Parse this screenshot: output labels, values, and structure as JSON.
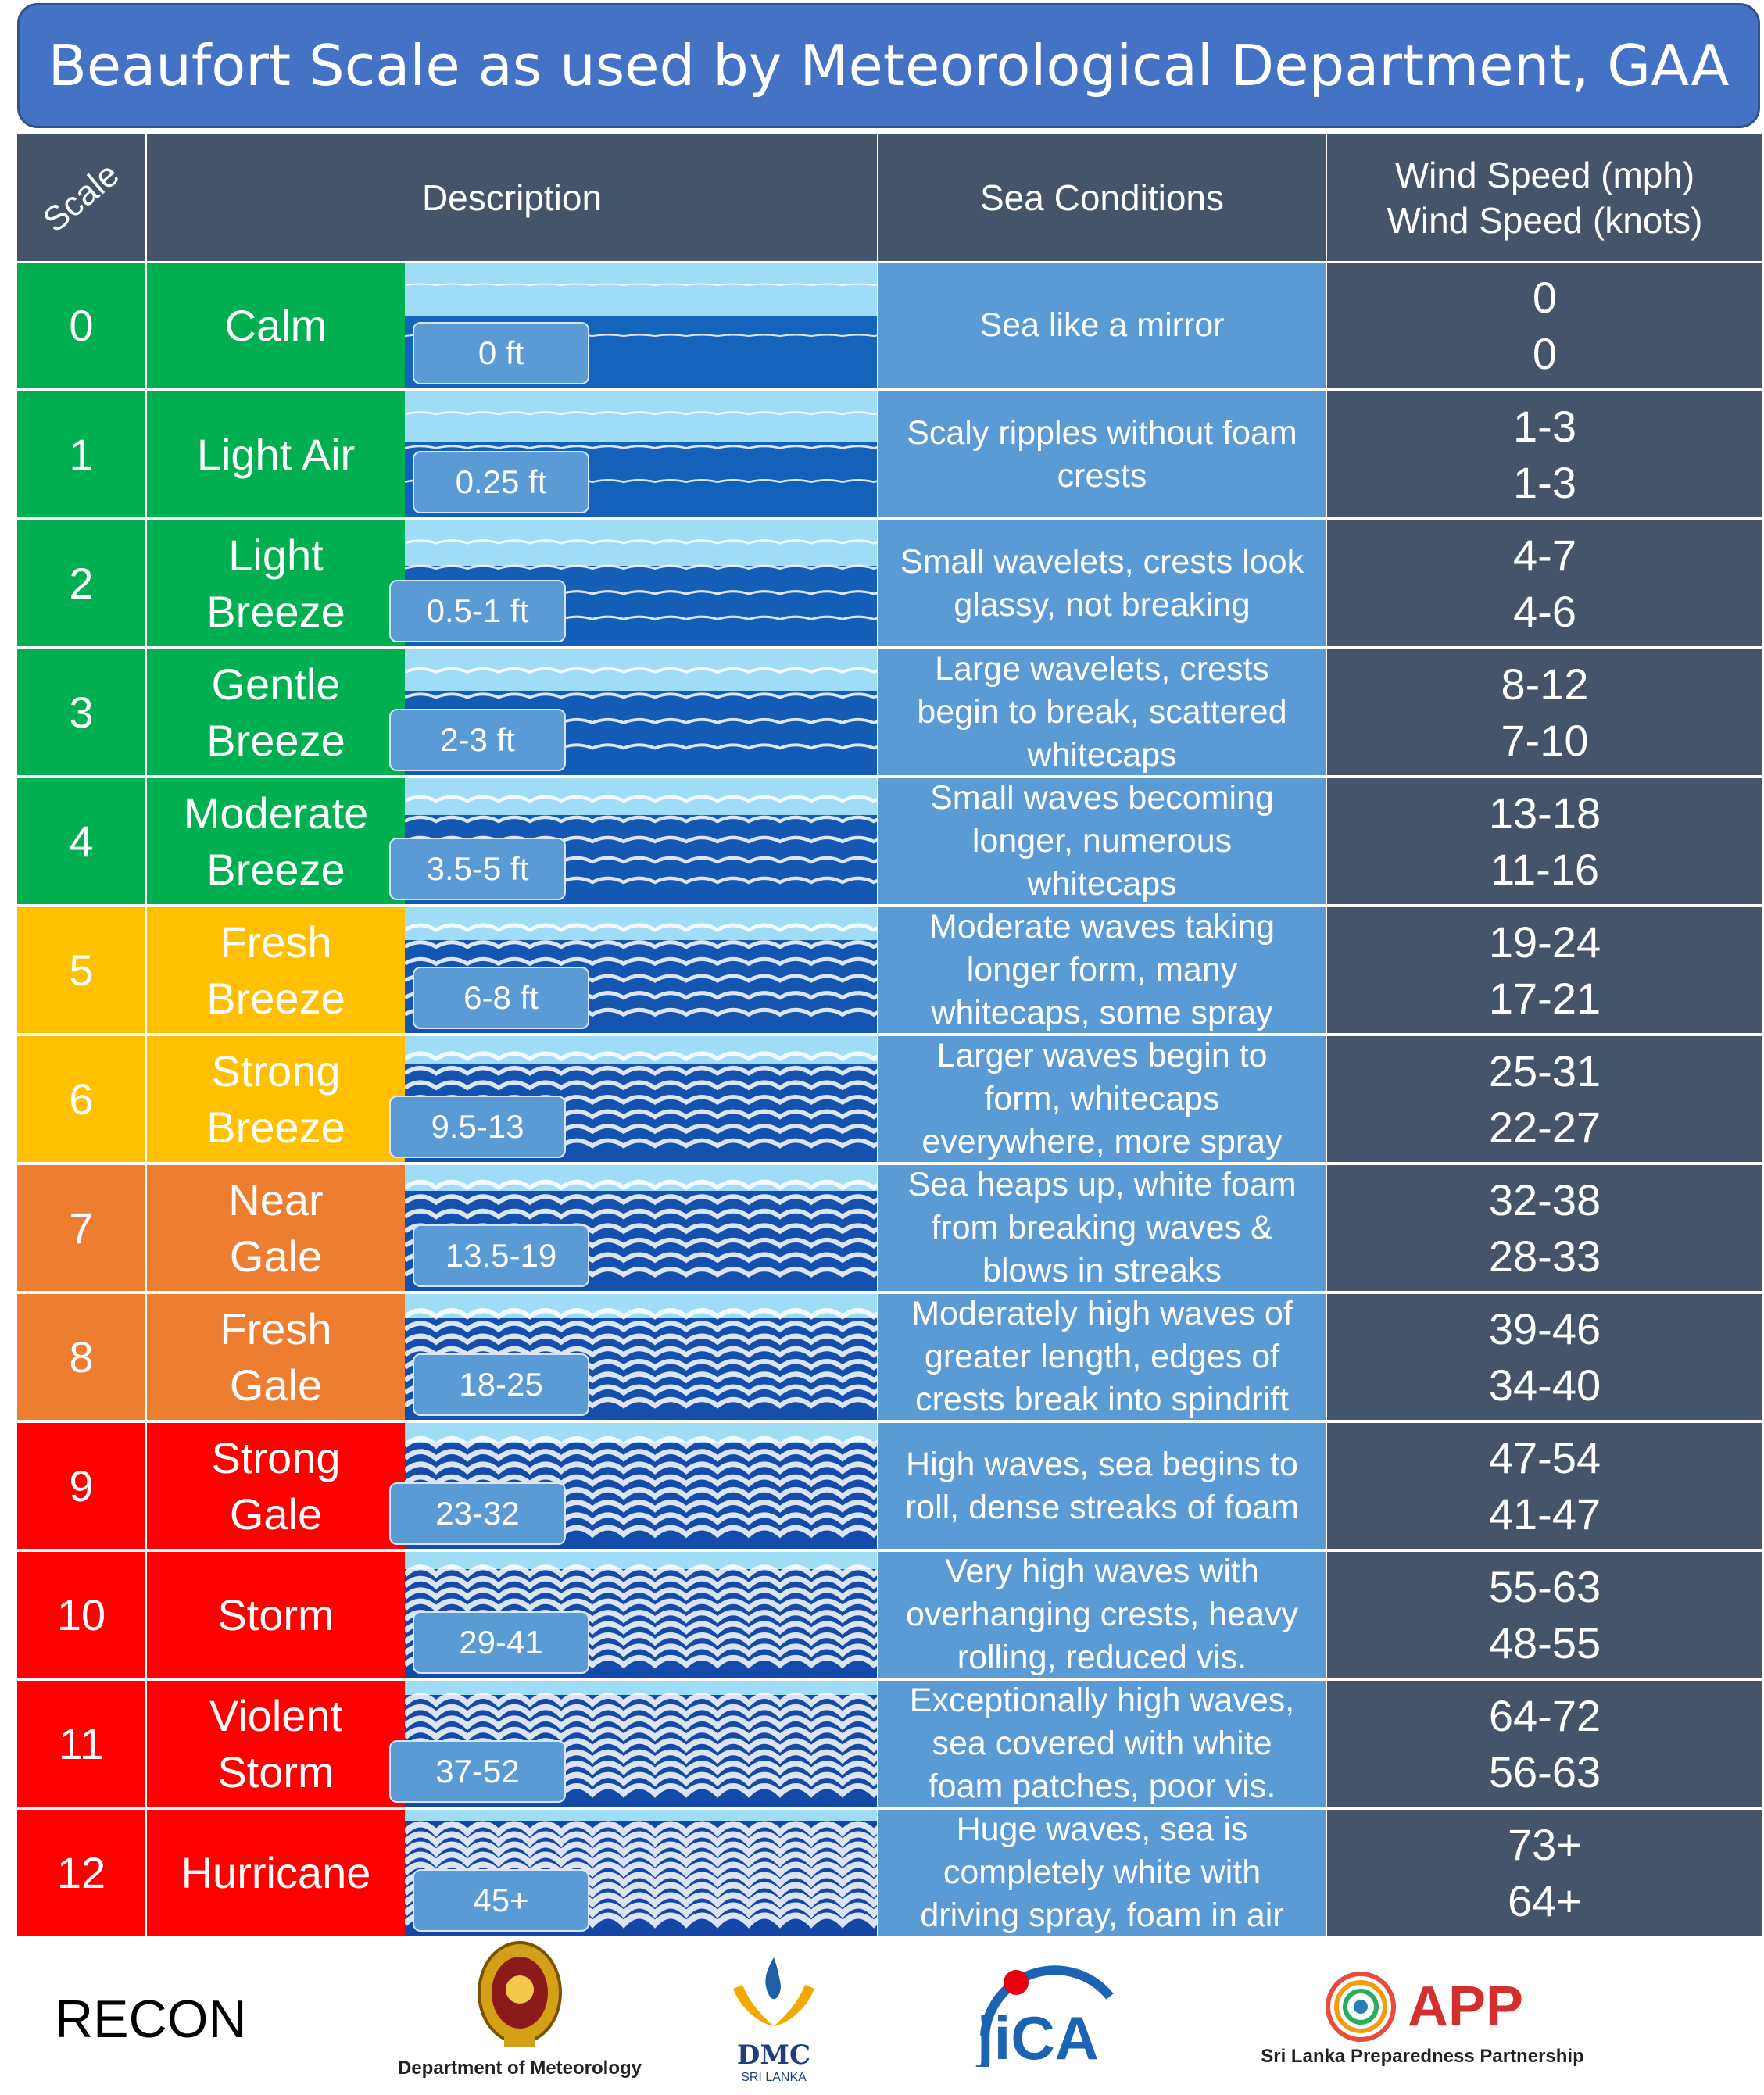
{
  "title": "Beaufort Scale as used by Meteorological Department, GAA",
  "headers": {
    "scale": "Scale",
    "description": "Description",
    "sea": "Sea Conditions",
    "wind_mph": "Wind Speed (mph)",
    "wind_knots": "Wind Speed (knots)"
  },
  "colors": {
    "green": "#00b050",
    "yellow": "#ffc000",
    "orange": "#ed7d31",
    "red": "#ff0000",
    "header": "#44546a",
    "sea": "#5b9bd5",
    "title": "#4472c4"
  },
  "rows": [
    {
      "scale": "0",
      "name_1": "Calm",
      "name_2": "",
      "height": "0 ft",
      "sea": "Sea like a mirror",
      "mph": "0",
      "knots": "0",
      "color": "green",
      "calm": 0.0
    },
    {
      "scale": "1",
      "name_1": "Light Air",
      "name_2": "",
      "height": "0.25 ft",
      "sea": "Scaly ripples without foam crests",
      "mph": "1-3",
      "knots": "1-3",
      "color": "green",
      "calm": 0.1
    },
    {
      "scale": "2",
      "name_1": "Light",
      "name_2": "Breeze",
      "height": "0.5-1 ft",
      "sea": "Small wavelets, crests look glassy, not breaking",
      "mph": "4-7",
      "knots": "4-6",
      "color": "green",
      "calm": 0.2
    },
    {
      "scale": "3",
      "name_1": "Gentle",
      "name_2": "Breeze",
      "height": "2-3 ft",
      "sea": "Large wavelets, crests begin to break, scattered whitecaps",
      "mph": "8-12",
      "knots": "7-10",
      "color": "green",
      "calm": 0.3
    },
    {
      "scale": "4",
      "name_1": "Moderate",
      "name_2": "Breeze",
      "height": "3.5-5 ft",
      "sea": "Small waves becoming longer, numerous whitecaps",
      "mph": "13-18",
      "knots": "11-16",
      "color": "green",
      "calm": 0.4
    },
    {
      "scale": "5",
      "name_1": "Fresh",
      "name_2": "Breeze",
      "height": "6-8 ft",
      "sea": "Moderate waves taking longer form, many whitecaps, some spray",
      "mph": "19-24",
      "knots": "17-21",
      "color": "yellow",
      "calm": 0.5
    },
    {
      "scale": "6",
      "name_1": "Strong",
      "name_2": "Breeze",
      "height": "9.5-13",
      "sea": "Larger waves begin to form, whitecaps everywhere, more spray",
      "mph": "25-31",
      "knots": "22-27",
      "color": "yellow",
      "calm": 0.6
    },
    {
      "scale": "7",
      "name_1": "Near",
      "name_2": "Gale",
      "height": "13.5-19",
      "sea": "Sea heaps up, white foam from breaking waves & blows in streaks",
      "mph": "32-38",
      "knots": "28-33",
      "color": "orange",
      "calm": 0.65
    },
    {
      "scale": "8",
      "name_1": "Fresh",
      "name_2": "Gale",
      "height": "18-25",
      "sea": "Moderately high waves of greater length, edges of crests break into spindrift",
      "mph": "39-46",
      "knots": "34-40",
      "color": "orange",
      "calm": 0.7
    },
    {
      "scale": "9",
      "name_1": "Strong",
      "name_2": "Gale",
      "height": "23-32",
      "sea": "High waves, sea begins to roll, dense streaks of foam",
      "mph": "47-54",
      "knots": "41-47",
      "color": "red",
      "calm": 0.8
    },
    {
      "scale": "10",
      "name_1": "Storm",
      "name_2": "",
      "height": "29-41",
      "sea": "Very high waves with overhanging crests, heavy rolling, reduced vis.",
      "mph": "55-63",
      "knots": "48-55",
      "color": "red",
      "calm": 0.85
    },
    {
      "scale": "11",
      "name_1": "Violent",
      "name_2": "Storm",
      "height": "37-52",
      "sea": "Exceptionally high waves, sea covered with white foam patches, poor vis.",
      "mph": "64-72",
      "knots": "56-63",
      "color": "red",
      "calm": 0.92
    },
    {
      "scale": "12",
      "name_1": "Hurricane",
      "name_2": "",
      "height": "45+",
      "sea": "Huge waves, sea is completely white with driving spray, foam in air",
      "mph": "73+",
      "knots": "64+",
      "color": "red",
      "calm": 1.0
    }
  ],
  "footer": {
    "recon": "RECON",
    "met_caption": "Department of Meteorology",
    "dmc_caption": "DMC",
    "dmc_sub": "SRI LANKA",
    "jica": "jiCA",
    "app": "APP",
    "app_caption": "Sri Lanka Preparedness Partnership"
  }
}
